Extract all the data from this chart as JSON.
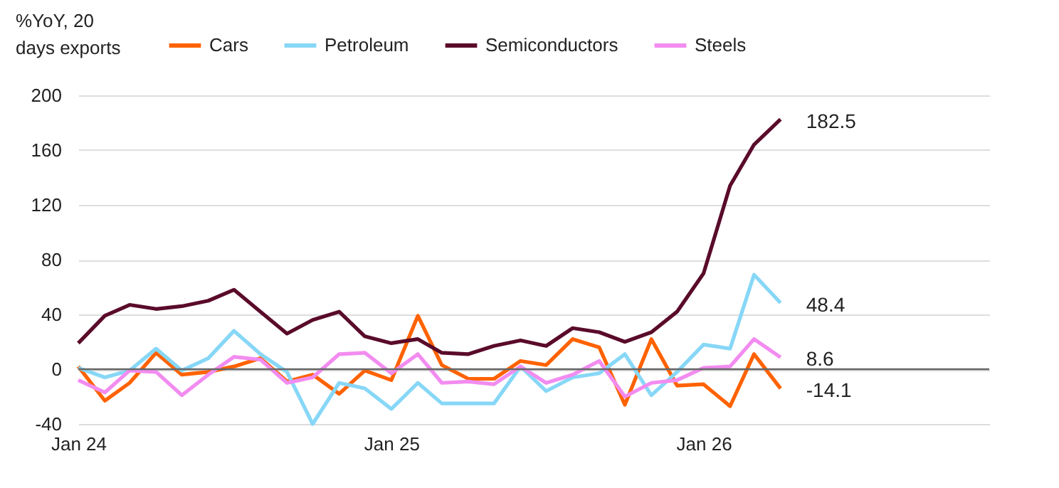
{
  "chart_data": {
    "type": "line",
    "ylabel": "%YoY, 20 days exports",
    "x": [
      "2024-01",
      "2024-02",
      "2024-03",
      "2024-04",
      "2024-05",
      "2024-06",
      "2024-07",
      "2024-08",
      "2024-09",
      "2024-10",
      "2024-11",
      "2024-12",
      "2025-01",
      "2025-02",
      "2025-03",
      "2025-04",
      "2025-05",
      "2025-06",
      "2025-07",
      "2025-08",
      "2025-09",
      "2025-10",
      "2025-11",
      "2025-12",
      "2026-01",
      "2026-02",
      "2026-03",
      "2026-04"
    ],
    "series": [
      {
        "name": "Cars",
        "color": "#ff6200",
        "values": [
          2,
          -23,
          -10,
          12,
          -4,
          -2,
          2,
          8,
          -9,
          -4,
          -18,
          -1,
          -8,
          39,
          3,
          -7,
          -7,
          6,
          3,
          22,
          16,
          -26,
          22,
          -12,
          -11,
          -27,
          11,
          -14.1
        ]
      },
      {
        "name": "Petroleum",
        "color": "#87d7f7",
        "values": [
          1,
          -6,
          -1,
          15,
          -1,
          8,
          28,
          11,
          -2,
          -40,
          -10,
          -14,
          -29,
          -10,
          -25,
          -25,
          -25,
          2,
          -16,
          -6,
          -3,
          11,
          -19,
          -2,
          18,
          15,
          69,
          48.4
        ]
      },
      {
        "name": "Semiconductors",
        "color": "#5a0b2a",
        "values": [
          19,
          39,
          47,
          44,
          46,
          50,
          58,
          42,
          26,
          36,
          42,
          24,
          19,
          22,
          12,
          11,
          17,
          21,
          17,
          30,
          27,
          20,
          27,
          42,
          70,
          134,
          164,
          182.5
        ]
      },
      {
        "name": "Steels",
        "color": "#f28cf0",
        "values": [
          -8,
          -17,
          -1,
          -2,
          -19,
          -4,
          9,
          7,
          -10,
          -6,
          11,
          12,
          -3,
          11,
          -10,
          -9,
          -11,
          2,
          -10,
          -4,
          6,
          -20,
          -10,
          -8,
          1,
          2,
          22,
          8.6
        ]
      }
    ],
    "annotations": [
      {
        "text": "182.5",
        "x": "2026-04",
        "y": 182.5
      },
      {
        "text": "48.4",
        "x": "2026-04",
        "y": 48.4
      },
      {
        "text": "8.6",
        "x": "2026-04",
        "y": 8.6
      },
      {
        "text": "-14.1",
        "x": "2026-04",
        "y": -14.1
      }
    ],
    "xlim": [
      "2024-01",
      "2026-12"
    ],
    "xticks": [
      {
        "value": "2024-01",
        "label": "Jan 24"
      },
      {
        "value": "2025-01",
        "label": "Jan 25"
      },
      {
        "value": "2026-01",
        "label": "Jan 26"
      }
    ],
    "ylim": [
      -40,
      200
    ],
    "yticks": [
      -40,
      0,
      40,
      80,
      120,
      160,
      200
    ],
    "ref_lines": [
      {
        "axis": "y",
        "value": 0,
        "color": "#666666"
      }
    ],
    "grid": "y",
    "legend": "top"
  }
}
